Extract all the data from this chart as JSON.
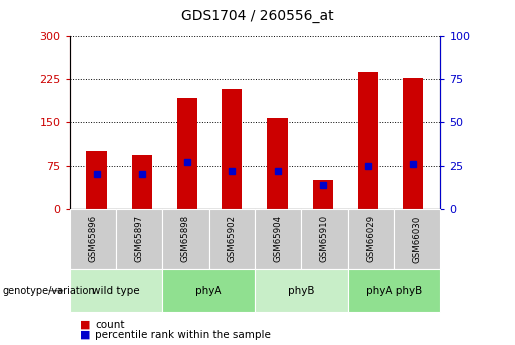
{
  "title": "GDS1704 / 260556_at",
  "samples": [
    "GSM65896",
    "GSM65897",
    "GSM65898",
    "GSM65902",
    "GSM65904",
    "GSM65910",
    "GSM66029",
    "GSM66030"
  ],
  "count_values": [
    100,
    93,
    193,
    208,
    157,
    50,
    237,
    228
  ],
  "percentile_values": [
    20,
    20,
    27,
    22,
    22,
    14,
    25,
    26
  ],
  "groups": [
    {
      "label": "wild type",
      "indices": [
        0,
        1
      ],
      "color": "#c8eec8"
    },
    {
      "label": "phyA",
      "indices": [
        2,
        3
      ],
      "color": "#90e090"
    },
    {
      "label": "phyB",
      "indices": [
        4,
        5
      ],
      "color": "#c8eec8"
    },
    {
      "label": "phyA phyB",
      "indices": [
        6,
        7
      ],
      "color": "#90e090"
    }
  ],
  "ylim_left": [
    0,
    300
  ],
  "ylim_right": [
    0,
    100
  ],
  "yticks_left": [
    0,
    75,
    150,
    225,
    300
  ],
  "yticks_right": [
    0,
    25,
    50,
    75,
    100
  ],
  "bar_color": "#cc0000",
  "marker_color": "#0000cc",
  "grid_color": "#000000",
  "bg_color": "#ffffff",
  "sample_bg": "#cccccc",
  "title_fontsize": 10,
  "legend_count_label": "count",
  "legend_pct_label": "percentile rank within the sample",
  "genotype_label": "genotype/variation"
}
